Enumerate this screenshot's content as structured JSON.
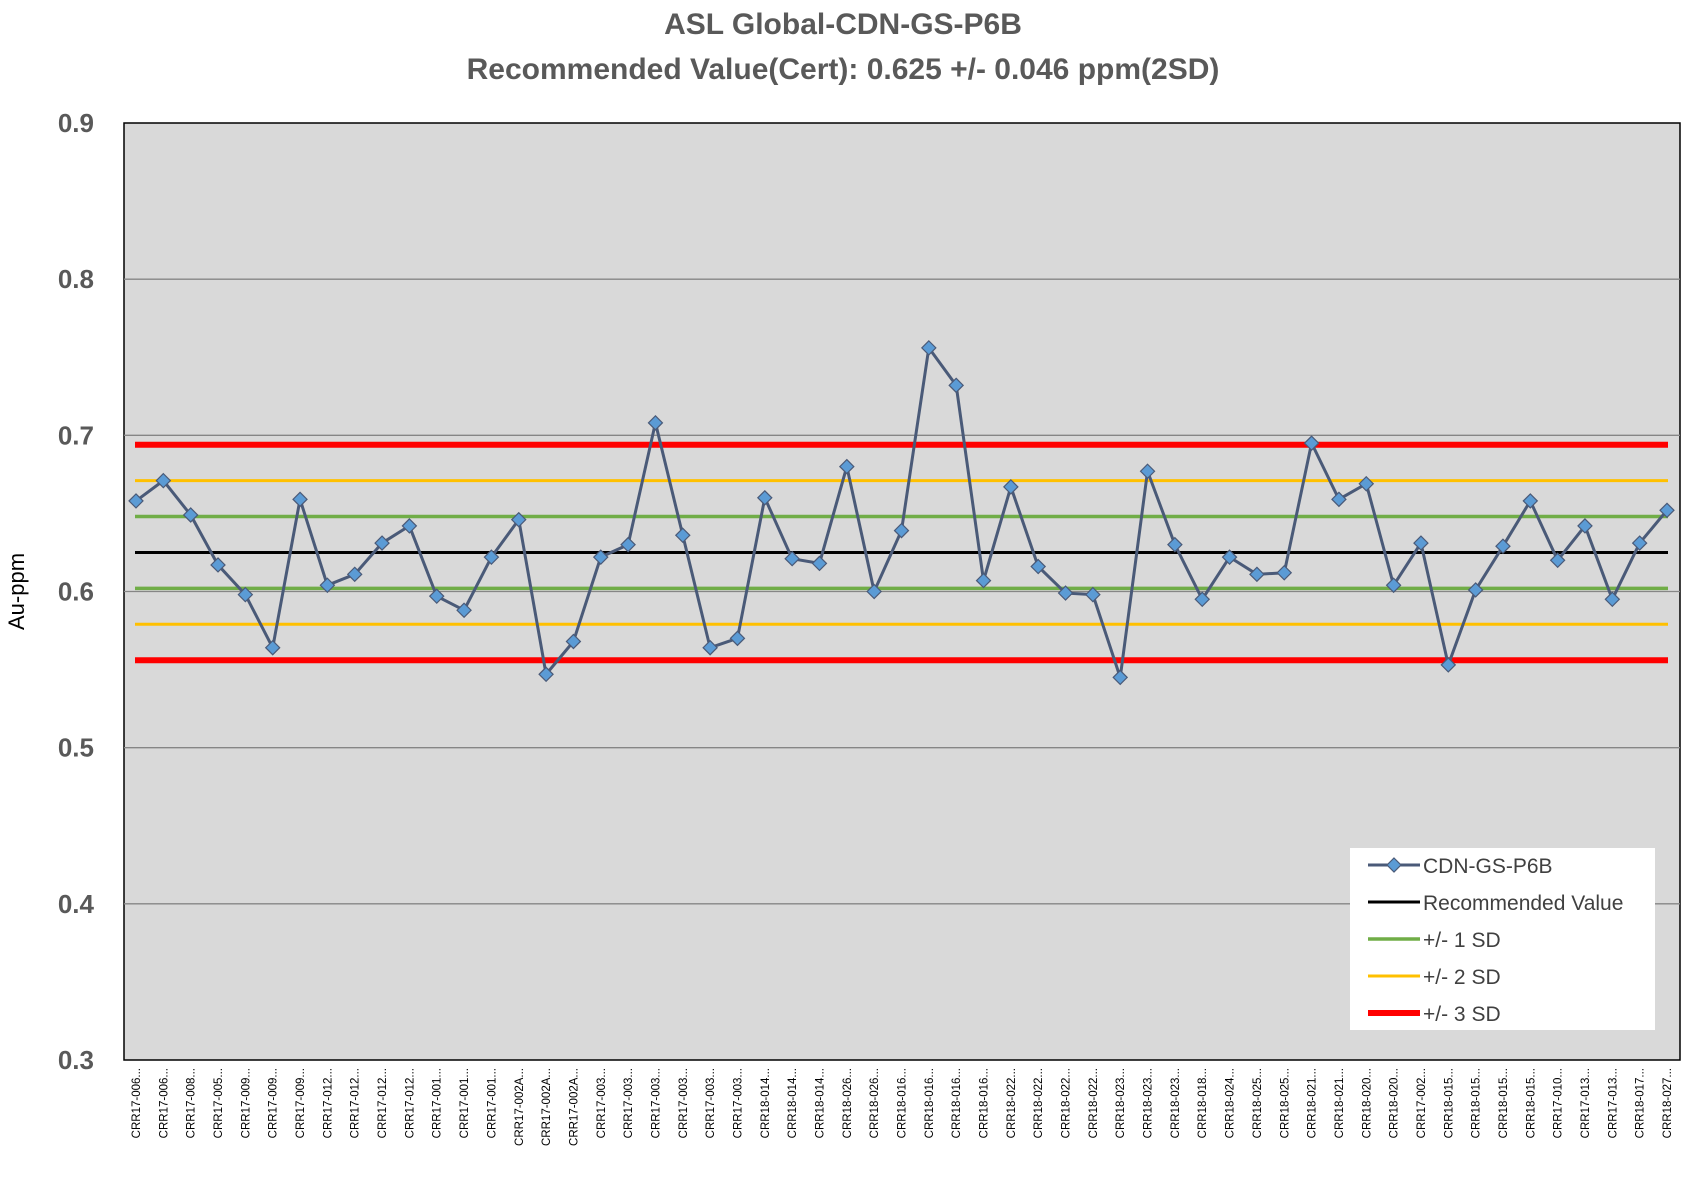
{
  "chart_data": {
    "type": "line",
    "title": "ASL Global-CDN-GS-P6B",
    "subtitle": "Recommended Value(Cert): 0.625 +/- 0.046 ppm(2SD)",
    "ylabel": "Au-ppm",
    "xlabel": "",
    "ylim": [
      0.3,
      0.9
    ],
    "yticks": [
      "0.3",
      "0.4",
      "0.5",
      "0.6",
      "0.7",
      "0.8",
      "0.9"
    ],
    "grid": true,
    "legend_position": "bottom-right",
    "categories": [
      "CRR17-006...",
      "CRR17-006...",
      "CRR17-008...",
      "CRR17-005...",
      "CRR17-009...",
      "CRR17-009...",
      "CRR17-009...",
      "CRR17-012...",
      "CRR17-012...",
      "CRR17-012...",
      "CRR17-012...",
      "CRR17-001...",
      "CRR17-001...",
      "CRR17-001...",
      "CRR17-002A...",
      "CRR17-002A...",
      "CRR17-002A...",
      "CRR17-003...",
      "CRR17-003...",
      "CRR17-003...",
      "CRR17-003...",
      "CRR17-003...",
      "CRR17-003...",
      "CRR18-014...",
      "CRR18-014...",
      "CRR18-014...",
      "CRR18-026...",
      "CRR18-026...",
      "CRR18-016...",
      "CRR18-016...",
      "CRR18-016...",
      "CRR18-016...",
      "CRR18-022...",
      "CRR18-022...",
      "CRR18-022...",
      "CRR18-022...",
      "CRR18-023...",
      "CRR18-023...",
      "CRR18-023...",
      "CRR18-018...",
      "CRR18-024...",
      "CRR18-025...",
      "CRR18-025...",
      "CRR18-021...",
      "CRR18-021...",
      "CRR18-020...",
      "CRR18-020...",
      "CRR17-002...",
      "CRR18-015...",
      "CRR18-015...",
      "CRR18-015...",
      "CRR18-015...",
      "CRR17-010...",
      "CRR17-013...",
      "CRR17-013...",
      "CRR18-017...",
      "CRR18-027..."
    ],
    "series": [
      {
        "name": "CDN-GS-P6B",
        "color": "#4a5a78",
        "marker_color": "#5b9bd5",
        "values": [
          0.658,
          0.671,
          0.649,
          0.617,
          0.598,
          0.564,
          0.659,
          0.604,
          0.611,
          0.631,
          0.642,
          0.597,
          0.588,
          0.622,
          0.646,
          0.547,
          0.568,
          0.622,
          0.63,
          0.708,
          0.636,
          0.564,
          0.57,
          0.66,
          0.621,
          0.618,
          0.68,
          0.6,
          0.639,
          0.756,
          0.732,
          0.607,
          0.667,
          0.616,
          0.599,
          0.598,
          0.545,
          0.677,
          0.63,
          0.595,
          0.622,
          0.611,
          0.612,
          0.695,
          0.659,
          0.669,
          0.604,
          0.631,
          0.553,
          0.601,
          0.629,
          0.658,
          0.62,
          0.642,
          0.595,
          0.631,
          0.652
        ]
      }
    ],
    "reference_lines": [
      {
        "name": "Recommended Value",
        "color": "#000000",
        "values": [
          0.625
        ]
      },
      {
        "name": "+/- 1 SD",
        "color": "#70ad47",
        "values": [
          0.602,
          0.648
        ]
      },
      {
        "name": "+/- 2 SD",
        "color": "#ffc000",
        "values": [
          0.579,
          0.671
        ]
      },
      {
        "name": "+/- 3 SD",
        "color": "#ff0000",
        "values": [
          0.556,
          0.694
        ]
      }
    ],
    "colors": {
      "plot_background": "#d9d9d9",
      "gridline": "#868686",
      "title": "#595959"
    }
  }
}
